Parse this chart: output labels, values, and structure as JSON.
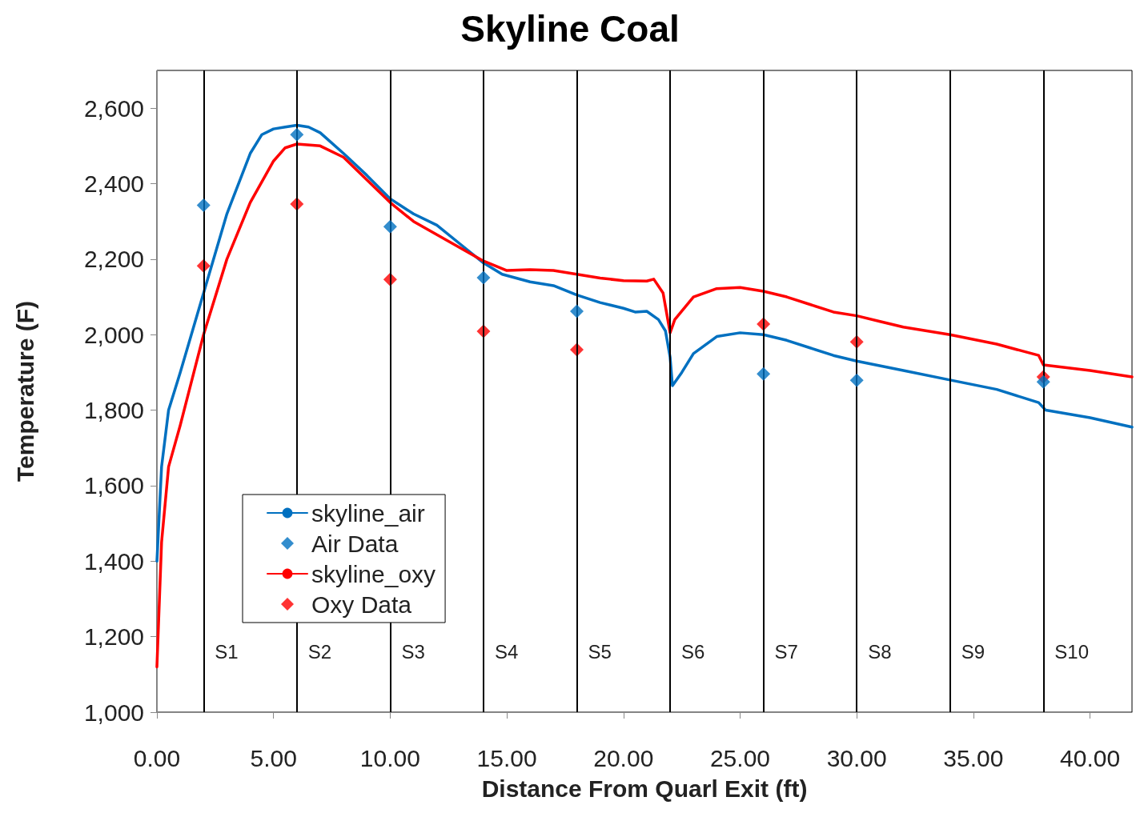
{
  "chart_data": {
    "type": "line",
    "title": "Skyline Coal",
    "xlabel": "Distance From Quarl Exit (ft)",
    "ylabel": "Temperature (F)",
    "xlim": [
      0,
      41.8
    ],
    "ylim": [
      1000,
      2700
    ],
    "xticks": [
      {
        "value": 0,
        "label": "0.00"
      },
      {
        "value": 5,
        "label": "5.00"
      },
      {
        "value": 10,
        "label": "10.00"
      },
      {
        "value": 15,
        "label": "15.00"
      },
      {
        "value": 20,
        "label": "20.00"
      },
      {
        "value": 25,
        "label": "25.00"
      },
      {
        "value": 30,
        "label": "30.00"
      },
      {
        "value": 35,
        "label": "35.00"
      },
      {
        "value": 40,
        "label": "40.00"
      }
    ],
    "yticks": [
      {
        "value": 1000,
        "label": "1,000"
      },
      {
        "value": 1200,
        "label": "1,200"
      },
      {
        "value": 1400,
        "label": "1,400"
      },
      {
        "value": 1600,
        "label": "1,600"
      },
      {
        "value": 1800,
        "label": "1,800"
      },
      {
        "value": 2000,
        "label": "2,000"
      },
      {
        "value": 2200,
        "label": "2,200"
      },
      {
        "value": 2400,
        "label": "2,400"
      },
      {
        "value": 2600,
        "label": "2,600"
      }
    ],
    "grid": false,
    "legend": "bottom left",
    "line_style": "solid",
    "series": [
      {
        "name": "skyline_air",
        "color": "#0070c0",
        "x": [
          0,
          0.2,
          0.5,
          1,
          2,
          3,
          4,
          4.5,
          5,
          5.5,
          6,
          6.5,
          7,
          8,
          9,
          10,
          11,
          12,
          13,
          14,
          14.8,
          16,
          17,
          18,
          19,
          20,
          20.5,
          21,
          21.5,
          21.8,
          22,
          22.1,
          22.5,
          23,
          24,
          25,
          26,
          27,
          28,
          29,
          30,
          32,
          34,
          36,
          37.8,
          38.1,
          40,
          41.8
        ],
        "values": [
          1400,
          1650,
          1800,
          1900,
          2110,
          2320,
          2480,
          2530,
          2545,
          2550,
          2555,
          2550,
          2535,
          2480,
          2422,
          2360,
          2320,
          2290,
          2240,
          2190,
          2160,
          2140,
          2130,
          2105,
          2085,
          2070,
          2060,
          2062,
          2040,
          2010,
          1940,
          1865,
          1900,
          1950,
          1995,
          2005,
          2000,
          1985,
          1965,
          1945,
          1930,
          1905,
          1880,
          1855,
          1820,
          1800,
          1780,
          1755
        ]
      },
      {
        "name": "Air Data",
        "type": "scatter",
        "marker": "diamond",
        "color": "#0070c0",
        "x": [
          2,
          6,
          10,
          14,
          18,
          26,
          30,
          38
        ],
        "values": [
          2343,
          2530,
          2286,
          2151,
          2062,
          1896,
          1879,
          1875
        ]
      },
      {
        "name": "skyline_oxy",
        "color": "#ff0000",
        "x": [
          0,
          0.2,
          0.5,
          1,
          2,
          3,
          4,
          5,
          5.5,
          6,
          7,
          8,
          9,
          10,
          11,
          12,
          13,
          14,
          15,
          16,
          17,
          18,
          19,
          20,
          21,
          21.3,
          21.7,
          22,
          22.2,
          23,
          24,
          25,
          26,
          27,
          28,
          29,
          30,
          31,
          32,
          34,
          36,
          37.8,
          38,
          40,
          41.8
        ],
        "values": [
          1120,
          1450,
          1650,
          1760,
          2000,
          2200,
          2350,
          2460,
          2495,
          2505,
          2500,
          2470,
          2410,
          2350,
          2300,
          2265,
          2230,
          2195,
          2170,
          2172,
          2170,
          2160,
          2150,
          2143,
          2142,
          2147,
          2110,
          2005,
          2040,
          2100,
          2122,
          2125,
          2115,
          2100,
          2080,
          2060,
          2050,
          2035,
          2020,
          2000,
          1975,
          1945,
          1920,
          1905,
          1888
        ]
      },
      {
        "name": "Oxy Data",
        "type": "scatter",
        "marker": "diamond",
        "color": "#ff0000",
        "x": [
          2,
          6,
          10,
          14,
          18,
          26,
          30,
          38
        ],
        "values": [
          2182,
          2346,
          2146,
          2009,
          1960,
          2028,
          1981,
          1888
        ]
      }
    ],
    "ref_lines": [
      {
        "axis": "x",
        "value": 2,
        "label": "S1",
        "color": "#000000"
      },
      {
        "axis": "x",
        "value": 6,
        "label": "S2",
        "color": "#000000"
      },
      {
        "axis": "x",
        "value": 10,
        "label": "S3",
        "color": "#000000"
      },
      {
        "axis": "x",
        "value": 14,
        "label": "S4",
        "color": "#000000"
      },
      {
        "axis": "x",
        "value": 18,
        "label": "S5",
        "color": "#000000"
      },
      {
        "axis": "x",
        "value": 22,
        "label": "S6",
        "color": "#000000"
      },
      {
        "axis": "x",
        "value": 26,
        "label": "S7",
        "color": "#000000"
      },
      {
        "axis": "x",
        "value": 30,
        "label": "S8",
        "color": "#000000"
      },
      {
        "axis": "x",
        "value": 34,
        "label": "S9",
        "color": "#000000"
      },
      {
        "axis": "x",
        "value": 38,
        "label": "S10",
        "color": "#000000"
      }
    ]
  }
}
